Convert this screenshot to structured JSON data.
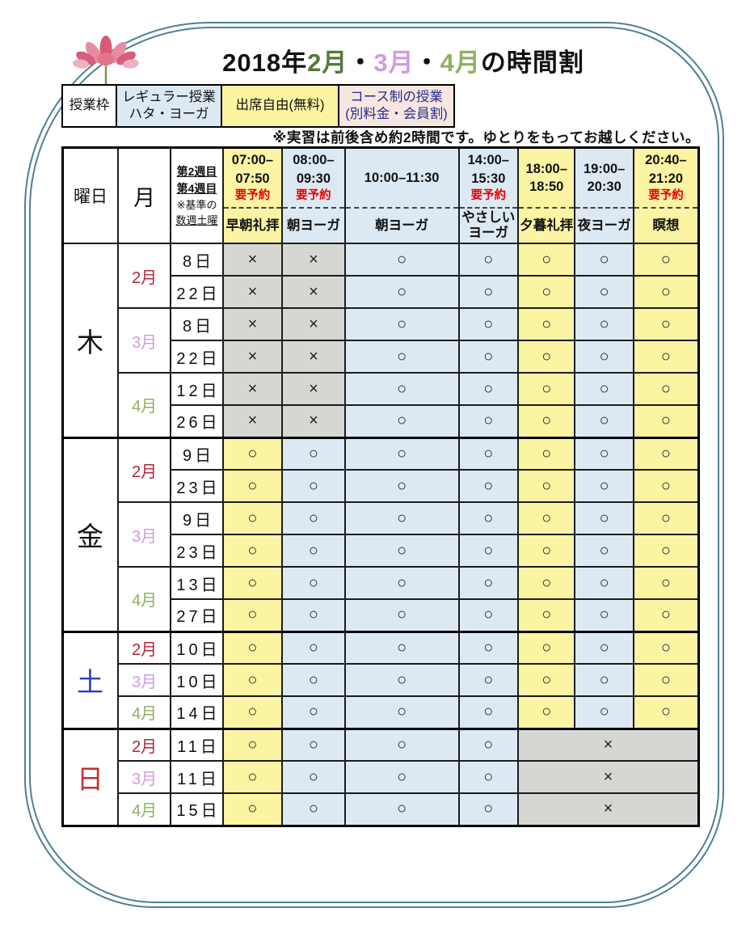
{
  "title": {
    "parts": [
      {
        "text": "2018年",
        "color": "#111111"
      },
      {
        "text": "2月",
        "color": "#53793b"
      },
      {
        "text": "・",
        "color": "#111111"
      },
      {
        "text": "3月",
        "color": "#cf9ce4"
      },
      {
        "text": "・",
        "color": "#111111"
      },
      {
        "text": "4月",
        "color": "#8eb15f"
      },
      {
        "text": "の時間割",
        "color": "#111111"
      }
    ]
  },
  "legend": {
    "label": "授業枠",
    "items": [
      {
        "text": "レギュラー授業\nハタ・ヨーガ",
        "bg": "#dde9f2",
        "color": "#111111"
      },
      {
        "text": "出席自由(無料)",
        "bg": "#fbf4a3",
        "color": "#111111"
      },
      {
        "text": "コース制の授業\n(別料金・会員割)",
        "bg": "#f7e7e0",
        "color": "#29298e"
      }
    ]
  },
  "note": "※実習は前後含め約2時間です。ゆとりをもってお越しください。",
  "table": {
    "corner": {
      "day": "曜日",
      "month": "月"
    },
    "week_note": [
      {
        "text": "第2週目",
        "style": "wn-b"
      },
      {
        "text": "第4週目",
        "style": "wn-b"
      },
      {
        "text": "※基準の",
        "style": "wn-s"
      },
      {
        "text": "数週土曜",
        "style": "wn-su"
      }
    ],
    "time_columns": [
      {
        "time": "07:00–\n07:50",
        "reserve": "要予約",
        "name": "早朝礼拝",
        "tone": "y"
      },
      {
        "time": "08:00–\n09:30",
        "reserve": "要予約",
        "name": "朝ヨーガ",
        "tone": "b"
      },
      {
        "time": "10:00–11:30",
        "reserve": "",
        "name": "朝ヨーガ",
        "tone": "b"
      },
      {
        "time": "14:00–\n15:30",
        "reserve": "要予約",
        "name": "やさしい\nヨーガ",
        "tone": "b"
      },
      {
        "time": "18:00–\n18:50",
        "reserve": "",
        "name": "夕暮礼拝",
        "tone": "y"
      },
      {
        "time": "19:00–\n20:30",
        "reserve": "",
        "name": "夜ヨーガ",
        "tone": "b"
      },
      {
        "time": "20:40–\n21:20",
        "reserve": "要予約",
        "name": "瞑想",
        "tone": "y"
      }
    ],
    "column_tones": [
      "y",
      "b",
      "b",
      "b",
      "y",
      "b",
      "y"
    ],
    "symbols": {
      "open": "○",
      "closed": "×"
    },
    "day_blocks": [
      {
        "day": "木",
        "day_color": "#111111",
        "months": [
          {
            "label": "2月",
            "color": "#b22638",
            "rows": [
              {
                "date": "8日",
                "marks": [
                  "x",
                  "x",
                  "o",
                  "o",
                  "o",
                  "o",
                  "o"
                ]
              },
              {
                "date": "22日",
                "marks": [
                  "x",
                  "x",
                  "o",
                  "o",
                  "o",
                  "o",
                  "o"
                ]
              }
            ]
          },
          {
            "label": "3月",
            "color": "#cf9ce4",
            "rows": [
              {
                "date": "8日",
                "marks": [
                  "x",
                  "x",
                  "o",
                  "o",
                  "o",
                  "o",
                  "o"
                ]
              },
              {
                "date": "22日",
                "marks": [
                  "x",
                  "x",
                  "o",
                  "o",
                  "o",
                  "o",
                  "o"
                ]
              }
            ]
          },
          {
            "label": "4月",
            "color": "#8eb15f",
            "rows": [
              {
                "date": "12日",
                "marks": [
                  "x",
                  "x",
                  "o",
                  "o",
                  "o",
                  "o",
                  "o"
                ]
              },
              {
                "date": "26日",
                "marks": [
                  "x",
                  "x",
                  "o",
                  "o",
                  "o",
                  "o",
                  "o"
                ]
              }
            ]
          }
        ]
      },
      {
        "day": "金",
        "day_color": "#111111",
        "months": [
          {
            "label": "2月",
            "color": "#b22638",
            "rows": [
              {
                "date": "9日",
                "marks": [
                  "o",
                  "o",
                  "o",
                  "o",
                  "o",
                  "o",
                  "o"
                ]
              },
              {
                "date": "23日",
                "marks": [
                  "o",
                  "o",
                  "o",
                  "o",
                  "o",
                  "o",
                  "o"
                ]
              }
            ]
          },
          {
            "label": "3月",
            "color": "#cf9ce4",
            "rows": [
              {
                "date": "9日",
                "marks": [
                  "o",
                  "o",
                  "o",
                  "o",
                  "o",
                  "o",
                  "o"
                ]
              },
              {
                "date": "23日",
                "marks": [
                  "o",
                  "o",
                  "o",
                  "o",
                  "o",
                  "o",
                  "o"
                ]
              }
            ]
          },
          {
            "label": "4月",
            "color": "#8eb15f",
            "rows": [
              {
                "date": "13日",
                "marks": [
                  "o",
                  "o",
                  "o",
                  "o",
                  "o",
                  "o",
                  "o"
                ]
              },
              {
                "date": "27日",
                "marks": [
                  "o",
                  "o",
                  "o",
                  "o",
                  "o",
                  "o",
                  "o"
                ]
              }
            ]
          }
        ]
      },
      {
        "day": "土",
        "day_color": "#2f3db8",
        "months": [
          {
            "label": "2月",
            "color": "#b22638",
            "rows": [
              {
                "date": "10日",
                "marks": [
                  "o",
                  "o",
                  "o",
                  "o",
                  "o",
                  "o",
                  "o"
                ]
              }
            ]
          },
          {
            "label": "3月",
            "color": "#cf9ce4",
            "rows": [
              {
                "date": "10日",
                "marks": [
                  "o",
                  "o",
                  "o",
                  "o",
                  "o",
                  "o",
                  "o"
                ]
              }
            ]
          },
          {
            "label": "4月",
            "color": "#8eb15f",
            "rows": [
              {
                "date": "14日",
                "marks": [
                  "o",
                  "o",
                  "o",
                  "o",
                  "o",
                  "o",
                  "o"
                ]
              }
            ]
          }
        ]
      },
      {
        "day": "日",
        "day_color": "#c62f2f",
        "months": [
          {
            "label": "2月",
            "color": "#b22638",
            "rows": [
              {
                "date": "11日",
                "marks": [
                  "o",
                  "o",
                  "o",
                  "o",
                  "x3"
                ]
              }
            ]
          },
          {
            "label": "3月",
            "color": "#cf9ce4",
            "rows": [
              {
                "date": "11日",
                "marks": [
                  "o",
                  "o",
                  "o",
                  "o",
                  "x3"
                ]
              }
            ]
          },
          {
            "label": "4月",
            "color": "#8eb15f",
            "rows": [
              {
                "date": "15日",
                "marks": [
                  "o",
                  "o",
                  "o",
                  "o",
                  "x3"
                ]
              }
            ]
          }
        ]
      }
    ]
  },
  "colors": {
    "yellow": "#fbf4a3",
    "blue": "#dde9f2",
    "gray": "#d6d6d3",
    "frame": "#4e8096",
    "reserve_red": "#e60000"
  }
}
